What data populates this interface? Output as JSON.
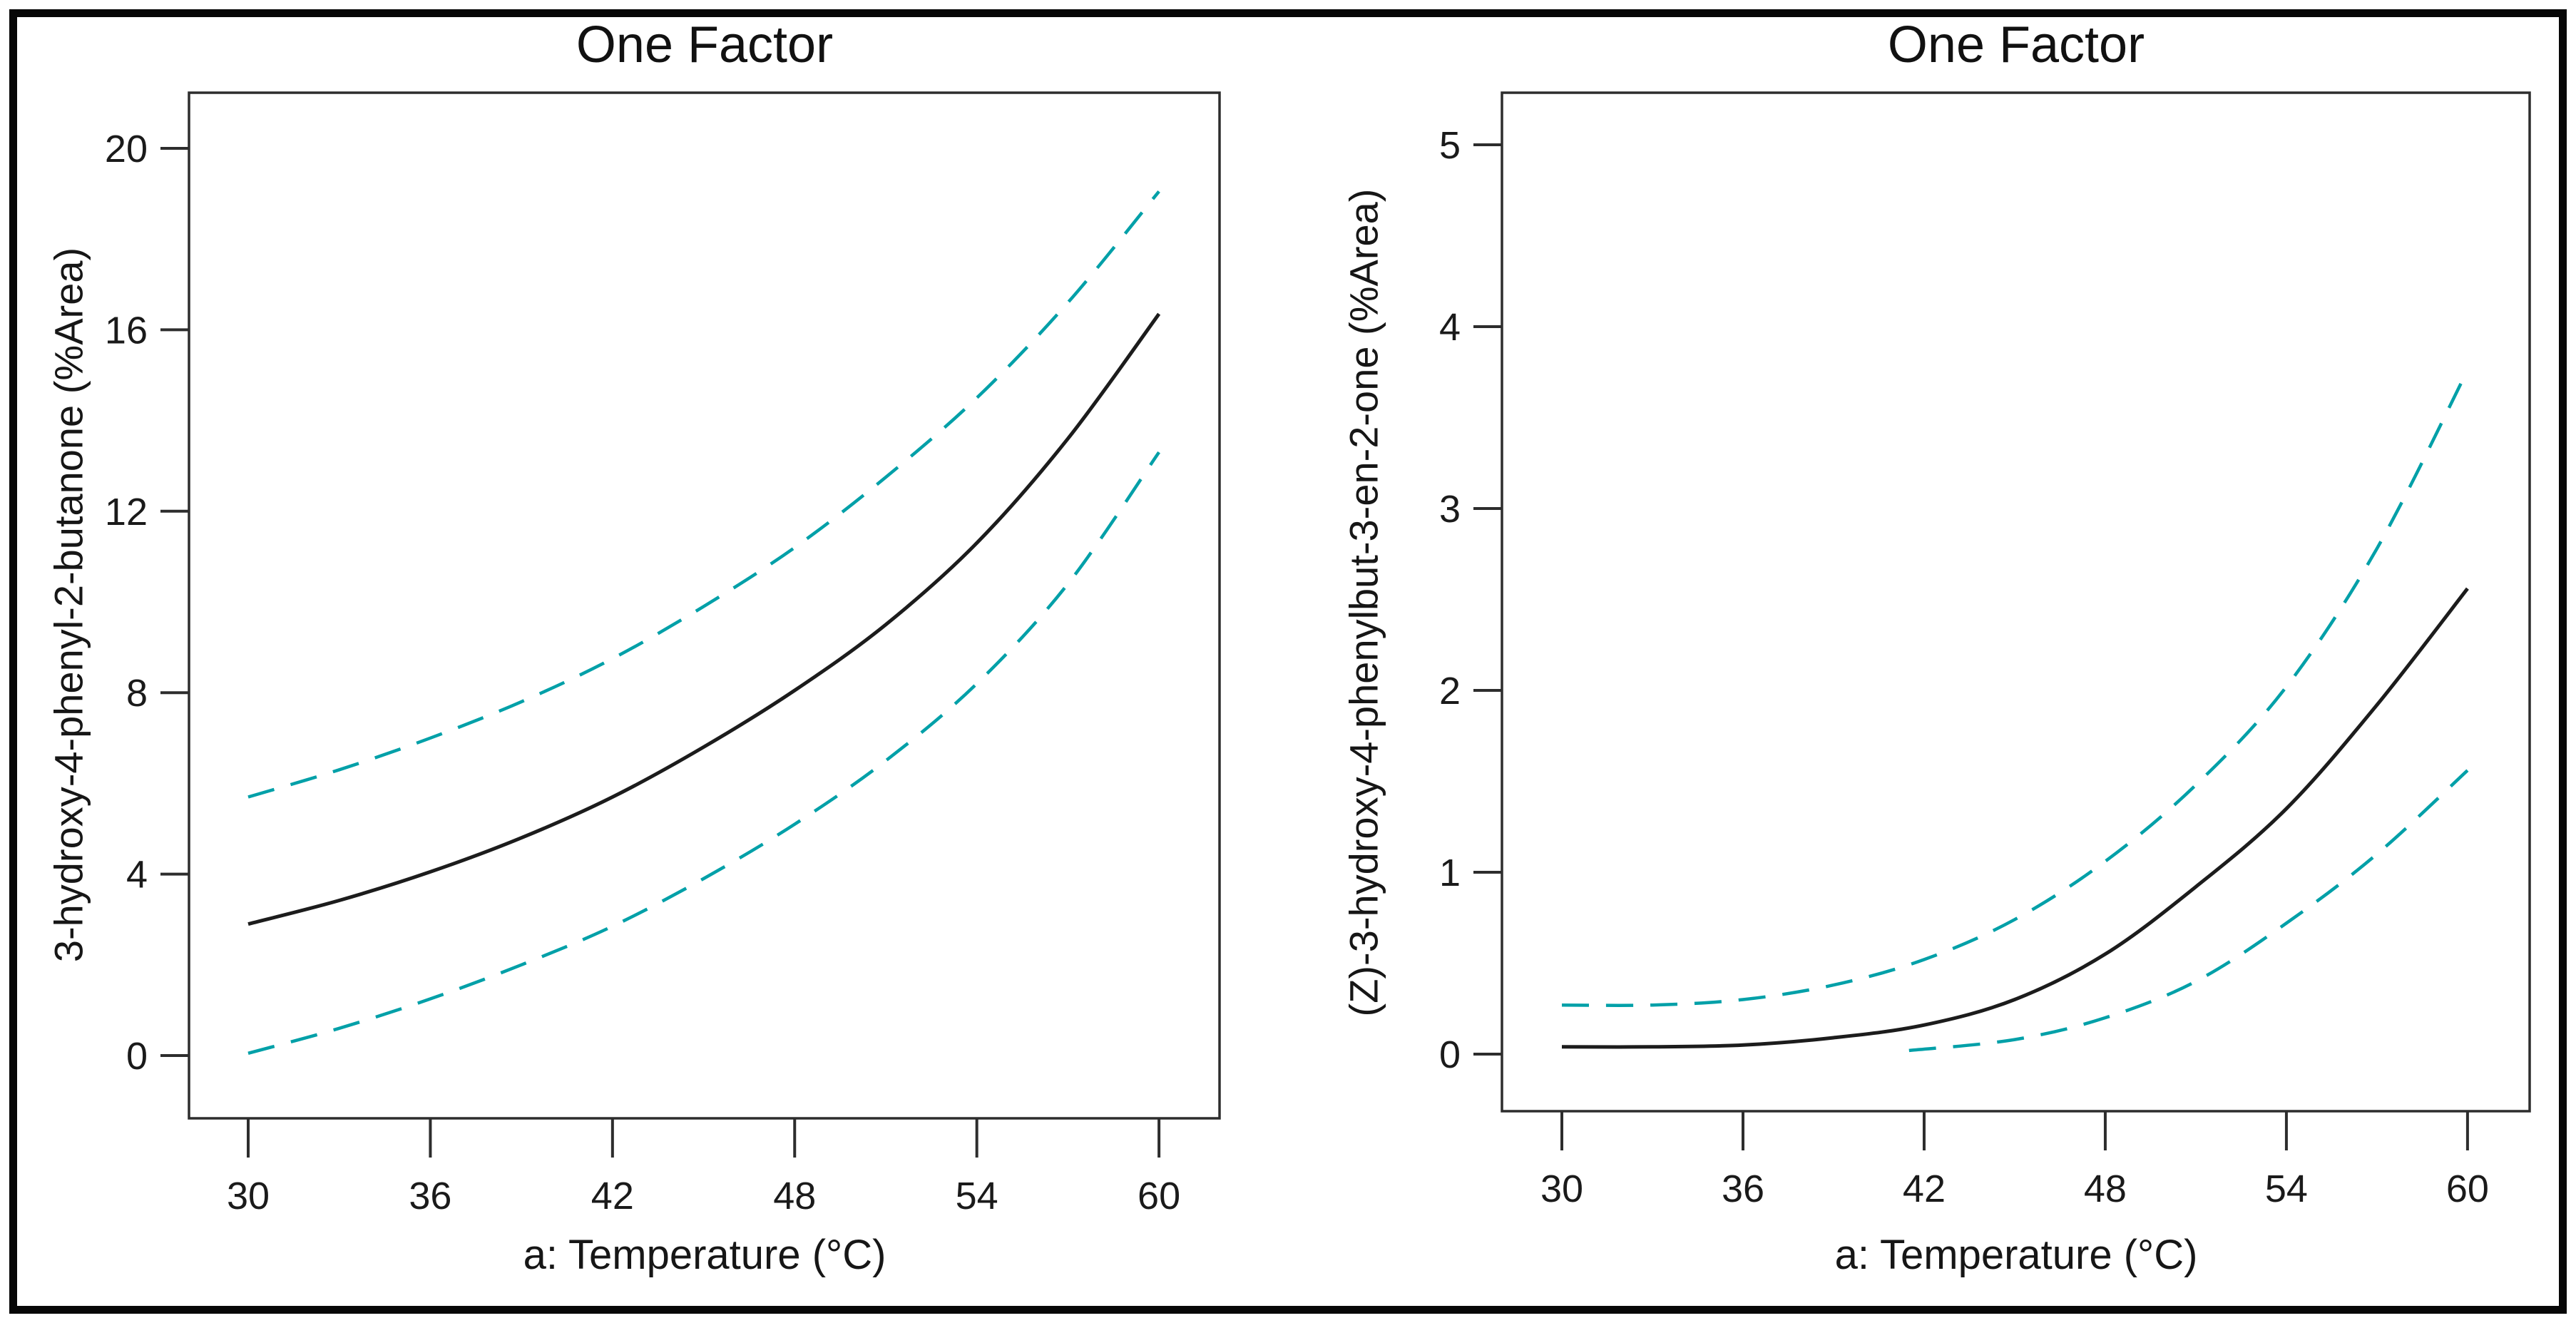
{
  "figure": {
    "background": "#ffffff",
    "border_color": "#070707"
  },
  "colors": {
    "mean_curve": "#1c1c1c",
    "confidence_band": "#00a0a8",
    "axis": "#2d2d2d",
    "text": "#161616"
  },
  "chart_data": [
    {
      "type": "line",
      "title": "One Factor",
      "xlabel": "a: Temperature (°C)",
      "ylabel": "3-hydroxy-4-phenyl-2-butanone (%Area)",
      "xlim": [
        28,
        62
      ],
      "ylim": [
        -1.4,
        21.2
      ],
      "x_ticks": [
        30,
        36,
        42,
        48,
        54,
        60
      ],
      "y_ticks": [
        0,
        4,
        8,
        12,
        16,
        20
      ],
      "grid": false,
      "legend": "none",
      "series": [
        {
          "name": "mean",
          "label": "predicted mean",
          "style": "solid",
          "color": "#1c1c1c",
          "x": [
            30,
            33,
            36,
            39,
            42,
            45,
            48,
            51,
            54,
            57,
            60
          ],
          "y": [
            2.9,
            3.42,
            4.05,
            4.8,
            5.7,
            6.8,
            8.05,
            9.5,
            11.3,
            13.6,
            16.35
          ]
        },
        {
          "name": "ci-upper",
          "label": "95% CI upper band",
          "style": "dashed",
          "color": "#00a0a8",
          "x": [
            30,
            33,
            36,
            39,
            42,
            45,
            48,
            51,
            54,
            57,
            60
          ],
          "y": [
            5.7,
            6.3,
            7.0,
            7.8,
            8.75,
            9.9,
            11.2,
            12.75,
            14.5,
            16.6,
            19.05
          ]
        },
        {
          "name": "ci-lower",
          "label": "95% CI lower band",
          "style": "dashed",
          "color": "#00a0a8",
          "x": [
            30,
            33,
            36,
            39,
            42,
            45,
            48,
            51,
            54,
            57,
            60
          ],
          "y": [
            0.05,
            0.6,
            1.25,
            2.0,
            2.85,
            3.9,
            5.1,
            6.5,
            8.2,
            10.4,
            13.3
          ]
        }
      ]
    },
    {
      "type": "line",
      "title": "One Factor",
      "xlabel": "a: Temperature (°C)",
      "ylabel": "(Z)-3-hydroxy-4-phenylbut-3-en-2-one (%Area)",
      "xlim": [
        28,
        62
      ],
      "ylim": [
        -0.31,
        5.29
      ],
      "x_ticks": [
        30,
        36,
        42,
        48,
        54,
        60
      ],
      "y_ticks": [
        0,
        1,
        2,
        3,
        4,
        5
      ],
      "grid": false,
      "legend": "none",
      "series": [
        {
          "name": "mean",
          "label": "predicted mean",
          "style": "solid",
          "color": "#1c1c1c",
          "x": [
            30,
            33,
            36,
            39,
            42,
            45,
            48,
            51,
            54,
            57,
            60
          ],
          "y": [
            0.04,
            0.04,
            0.05,
            0.09,
            0.16,
            0.3,
            0.55,
            0.92,
            1.35,
            1.92,
            2.56
          ]
        },
        {
          "name": "ci-upper",
          "label": "95% CI upper band",
          "style": "dashed",
          "color": "#00a0a8",
          "x": [
            30,
            33,
            36,
            39,
            42,
            45,
            48,
            51,
            54,
            57,
            60
          ],
          "y": [
            0.27,
            0.27,
            0.3,
            0.38,
            0.52,
            0.74,
            1.06,
            1.48,
            2.02,
            2.78,
            3.76
          ]
        },
        {
          "name": "ci-lower",
          "label": "95% CI lower band",
          "style": "dashed",
          "color": "#00a0a8",
          "x": [
            41.5,
            45,
            48,
            51,
            54,
            57,
            60
          ],
          "y": [
            0.02,
            0.08,
            0.2,
            0.4,
            0.72,
            1.1,
            1.56
          ]
        }
      ]
    }
  ]
}
